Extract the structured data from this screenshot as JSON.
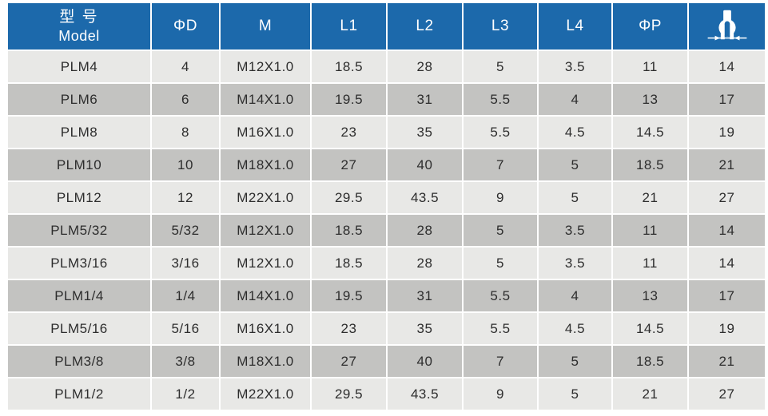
{
  "table": {
    "colors": {
      "header_bg": "#1c69ab",
      "header_text": "#ffffff",
      "row_light": "#e8e8e6",
      "row_dark": "#c3c3c1",
      "cell_text": "#2d2d2d"
    },
    "columns": {
      "model": {
        "cn": "型 号",
        "en": "Model"
      },
      "phi_d": "ΦD",
      "m": "M",
      "l1": "L1",
      "l2": "L2",
      "l3": "L3",
      "l4": "L4",
      "phi_p": "ΦP",
      "wrench_icon": "wrench-width-icon"
    },
    "rows": [
      [
        "PLM4",
        "4",
        "M12X1.0",
        "18.5",
        "28",
        "5",
        "3.5",
        "11",
        "14"
      ],
      [
        "PLM6",
        "6",
        "M14X1.0",
        "19.5",
        "31",
        "5.5",
        "4",
        "13",
        "17"
      ],
      [
        "PLM8",
        "8",
        "M16X1.0",
        "23",
        "35",
        "5.5",
        "4.5",
        "14.5",
        "19"
      ],
      [
        "PLM10",
        "10",
        "M18X1.0",
        "27",
        "40",
        "7",
        "5",
        "18.5",
        "21"
      ],
      [
        "PLM12",
        "12",
        "M22X1.0",
        "29.5",
        "43.5",
        "9",
        "5",
        "21",
        "27"
      ],
      [
        "PLM5/32",
        "5/32",
        "M12X1.0",
        "18.5",
        "28",
        "5",
        "3.5",
        "11",
        "14"
      ],
      [
        "PLM3/16",
        "3/16",
        "M12X1.0",
        "18.5",
        "28",
        "5",
        "3.5",
        "11",
        "14"
      ],
      [
        "PLM1/4",
        "1/4",
        "M14X1.0",
        "19.5",
        "31",
        "5.5",
        "4",
        "13",
        "17"
      ],
      [
        "PLM5/16",
        "5/16",
        "M16X1.0",
        "23",
        "35",
        "5.5",
        "4.5",
        "14.5",
        "19"
      ],
      [
        "PLM3/8",
        "3/8",
        "M18X1.0",
        "27",
        "40",
        "7",
        "5",
        "18.5",
        "21"
      ],
      [
        "PLM1/2",
        "1/2",
        "M22X1.0",
        "29.5",
        "43.5",
        "9",
        "5",
        "21",
        "27"
      ]
    ]
  }
}
